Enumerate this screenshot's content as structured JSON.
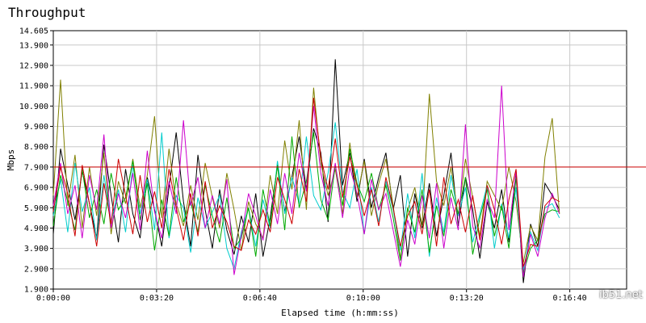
{
  "title": "Throughput",
  "watermark_text": "ib51.net",
  "chart_data": {
    "type": "line",
    "title": "Throughput",
    "xlabel": "Elapsed time (h:mm:ss)",
    "ylabel": "Mbps",
    "ylim": [
      1.9,
      14.605
    ],
    "xlim": [
      0,
      1110
    ],
    "x_ticks": [
      0,
      200,
      400,
      600,
      800,
      1000
    ],
    "x_tick_labels": [
      "0:00:00",
      "0:03:20",
      "0:06:40",
      "0:10:00",
      "0:13:20",
      "0:16:40"
    ],
    "y_ticks": [
      1.9,
      2.9,
      3.9,
      4.9,
      5.9,
      6.9,
      7.9,
      8.9,
      9.9,
      10.9,
      11.9,
      12.9,
      13.9,
      14.605
    ],
    "y_tick_labels": [
      "1.900",
      "2.900",
      "3.900",
      "4.900",
      "5.900",
      "6.900",
      "7.900",
      "8.900",
      "9.900",
      "10.900",
      "11.900",
      "12.900",
      "13.900",
      "14.605"
    ],
    "grid": true,
    "reference_line": {
      "value": 7.9,
      "color": "#cc0000"
    },
    "x_step_seconds": 14,
    "series": [
      {
        "color": "#000000",
        "values": [
          4.6,
          8.8,
          7.0,
          5.3,
          7.7,
          6.1,
          4.4,
          9.0,
          6.5,
          4.2,
          7.8,
          5.6,
          4.4,
          7.4,
          5.8,
          4.0,
          6.9,
          9.6,
          6.2,
          4.0,
          8.5,
          5.8,
          3.9,
          6.8,
          4.8,
          3.6,
          5.5,
          4.2,
          6.6,
          3.5,
          5.4,
          8.0,
          5.7,
          7.4,
          9.4,
          6.8,
          9.8,
          8.6,
          5.2,
          13.2,
          7.0,
          8.6,
          6.2,
          8.3,
          5.9,
          7.4,
          8.6,
          5.8,
          7.5,
          3.5,
          6.6,
          4.9,
          7.1,
          4.5,
          6.5,
          8.6,
          5.0,
          7.4,
          5.8,
          3.4,
          6.2,
          4.9,
          6.8,
          4.2,
          7.6,
          2.2,
          5.1,
          4.0,
          7.1,
          6.5,
          5.8
        ]
      },
      {
        "color": "#808000",
        "values": [
          6.5,
          12.2,
          6.0,
          8.5,
          4.9,
          7.9,
          5.5,
          8.6,
          4.6,
          7.2,
          6.1,
          8.3,
          5.9,
          7.5,
          10.4,
          5.4,
          8.8,
          6.1,
          5.0,
          7.0,
          5.3,
          8.1,
          6.4,
          4.9,
          7.6,
          5.8,
          3.8,
          6.2,
          5.1,
          4.4,
          7.5,
          5.6,
          9.2,
          6.8,
          10.2,
          5.8,
          11.8,
          8.1,
          6.5,
          7.8,
          5.6,
          9.1,
          6.4,
          8.2,
          5.5,
          7.1,
          8.3,
          6.0,
          3.4,
          5.8,
          6.9,
          5.0,
          11.5,
          7.2,
          6.0,
          7.9,
          5.5,
          8.3,
          6.4,
          4.5,
          7.2,
          6.5,
          5.8,
          7.9,
          6.2,
          3.2,
          5.0,
          4.3,
          8.4,
          10.3,
          5.6
        ]
      },
      {
        "color": "#00cccc",
        "values": [
          5.5,
          7.3,
          4.7,
          8.1,
          5.7,
          6.9,
          4.3,
          7.5,
          5.2,
          6.8,
          4.7,
          8.0,
          5.6,
          7.3,
          4.8,
          9.6,
          4.4,
          6.5,
          5.9,
          3.7,
          6.4,
          4.9,
          5.7,
          6.5,
          3.9,
          2.9,
          4.7,
          5.9,
          4.0,
          6.3,
          4.9,
          8.2,
          5.6,
          7.4,
          6.1,
          9.4,
          6.5,
          5.8,
          7.6,
          10.1,
          6.7,
          5.9,
          7.8,
          4.6,
          6.9,
          5.2,
          7.2,
          5.8,
          3.8,
          6.6,
          4.4,
          7.6,
          3.5,
          6.4,
          4.7,
          7.5,
          5.5,
          6.9,
          4.2,
          5.6,
          7.0,
          3.9,
          6.1,
          4.4,
          6.9,
          2.8,
          4.7,
          3.8,
          5.9,
          6.1,
          5.4
        ]
      },
      {
        "color": "#00aa00",
        "values": [
          5.0,
          7.5,
          6.2,
          4.8,
          7.8,
          5.4,
          6.8,
          5.1,
          7.6,
          5.8,
          6.4,
          8.2,
          5.3,
          7.1,
          3.8,
          6.3,
          4.5,
          7.4,
          5.2,
          6.2,
          4.7,
          7.0,
          5.5,
          4.2,
          6.4,
          3.9,
          4.4,
          5.9,
          3.5,
          6.8,
          5.0,
          8.0,
          4.8,
          9.4,
          5.9,
          7.2,
          9.6,
          6.3,
          5.3,
          8.0,
          6.0,
          8.8,
          7.1,
          6.2,
          7.6,
          5.8,
          7.0,
          5.4,
          3.3,
          5.9,
          4.7,
          6.8,
          3.7,
          6.0,
          4.5,
          6.8,
          5.6,
          7.4,
          3.6,
          5.4,
          6.8,
          4.5,
          6.0,
          3.9,
          7.4,
          2.7,
          3.9,
          4.3,
          5.6,
          5.8,
          5.7
        ]
      },
      {
        "color": "#cc00cc",
        "values": [
          6.0,
          8.1,
          5.6,
          7.0,
          4.4,
          7.5,
          5.8,
          9.5,
          4.9,
          6.6,
          5.4,
          7.6,
          4.8,
          8.7,
          5.7,
          4.4,
          7.2,
          5.6,
          10.2,
          6.0,
          7.4,
          4.9,
          6.5,
          5.1,
          7.3,
          2.6,
          4.5,
          6.6,
          5.5,
          4.3,
          6.8,
          5.1,
          7.6,
          5.6,
          8.6,
          6.7,
          10.9,
          7.6,
          6.0,
          8.1,
          5.4,
          7.9,
          6.6,
          4.6,
          7.3,
          5.8,
          6.6,
          4.8,
          3.0,
          5.3,
          4.1,
          6.5,
          4.4,
          7.1,
          3.9,
          6.4,
          4.8,
          10.0,
          5.0,
          3.9,
          6.3,
          5.4,
          11.9,
          4.8,
          7.7,
          2.5,
          4.6,
          3.5,
          5.4,
          6.6,
          5.6
        ]
      },
      {
        "color": "#cc0000",
        "values": [
          5.7,
          7.9,
          6.6,
          4.5,
          8.0,
          6.1,
          4.0,
          7.1,
          5.1,
          8.3,
          6.5,
          4.6,
          7.5,
          5.2,
          6.7,
          4.9,
          7.8,
          5.9,
          4.3,
          6.6,
          4.5,
          7.2,
          4.9,
          6.0,
          5.2,
          4.0,
          3.8,
          5.3,
          4.6,
          5.8,
          4.7,
          7.4,
          6.3,
          5.1,
          7.8,
          6.2,
          11.3,
          8.4,
          6.8,
          9.3,
          6.4,
          8.4,
          7.0,
          5.5,
          6.8,
          5.0,
          7.4,
          5.9,
          4.0,
          5.5,
          6.2,
          4.6,
          6.8,
          4.0,
          7.4,
          5.1,
          6.3,
          4.7,
          6.5,
          4.3,
          7.0,
          5.8,
          4.1,
          6.3,
          7.8,
          3.0,
          4.1,
          4.0,
          6.0,
          6.4,
          6.2
        ]
      }
    ]
  }
}
